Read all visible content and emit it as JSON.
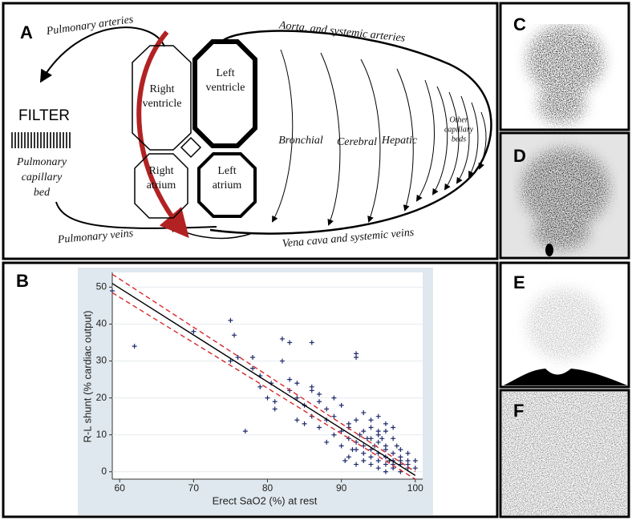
{
  "panels": [
    "A",
    "B",
    "C",
    "D",
    "E",
    "F"
  ],
  "diagram": {
    "pulmonary_arteries": "Pulmonary arteries",
    "filter": "FILTER",
    "capillary_bed": [
      "Pulmonary",
      "capillary",
      "bed"
    ],
    "right_ventricle": [
      "Right",
      "ventricle"
    ],
    "left_ventricle": [
      "Left",
      "ventricle"
    ],
    "right_atrium": [
      "Right",
      "atrium"
    ],
    "left_atrium": [
      "Left",
      "atrium"
    ],
    "aorta": "Aorta, and systemic arteries",
    "bronchial": "Bronchial",
    "cerebral": "Cerebral",
    "hepatic": "Hepatic",
    "other_beds": [
      "Other",
      "capillary",
      "beds"
    ],
    "pulmonary_veins": "Pulmonary veins",
    "vena_cava": "Vena cava and systemic veins"
  },
  "chart_data": {
    "type": "scatter",
    "xlabel": "Erect SaO2 (%) at rest",
    "ylabel": "R-L shunt (% cardiac output)",
    "xlim": [
      59,
      101
    ],
    "ylim": [
      -2,
      54
    ],
    "xticks": [
      60,
      70,
      80,
      90,
      100
    ],
    "yticks": [
      0,
      10,
      20,
      30,
      40,
      50
    ],
    "series": [
      {
        "type": "scatter",
        "color": "#1f2a6b",
        "x": [
          59,
          62,
          70,
          75,
          75.5,
          75,
          76,
          77,
          78,
          78,
          79,
          79,
          80,
          80.5,
          81,
          81,
          82,
          82,
          83,
          83,
          83,
          84,
          84,
          84,
          85,
          85,
          86,
          86,
          86,
          86,
          87,
          87,
          87,
          88,
          88,
          88,
          89,
          89,
          89,
          90,
          90,
          90,
          91,
          91,
          91,
          91,
          92,
          92,
          92,
          92,
          92,
          92,
          93,
          93,
          93,
          93,
          93,
          94,
          94,
          94,
          94,
          94,
          94,
          95,
          95,
          95,
          95,
          95,
          95,
          96,
          96,
          96,
          96,
          96,
          96,
          97,
          97,
          97,
          97,
          97,
          98,
          98,
          98,
          98,
          98,
          99,
          99,
          99,
          99,
          100,
          100,
          94.5,
          95.5,
          96.5,
          97.5,
          93.5,
          92.5,
          91.5,
          90.5,
          95,
          96,
          97
        ],
        "values": [
          49,
          34,
          38,
          41,
          37,
          30,
          31,
          11,
          31,
          28,
          23,
          26,
          20,
          24,
          19,
          17,
          30,
          36,
          35,
          25,
          22,
          20,
          24,
          14,
          18,
          13,
          35,
          23,
          22,
          15,
          21,
          12,
          19,
          14,
          8,
          17,
          15,
          10,
          20,
          18,
          11,
          7,
          9,
          4,
          13,
          12,
          32,
          31,
          8,
          6,
          14,
          2,
          11,
          7,
          5,
          3,
          16,
          9,
          6,
          4,
          2,
          14,
          12,
          8,
          5,
          3,
          1,
          15,
          10,
          7,
          4,
          2,
          0,
          11,
          6,
          5,
          3,
          1,
          9,
          2,
          4,
          2,
          0,
          6,
          3,
          3,
          1,
          2,
          5,
          3,
          1,
          7,
          9,
          3,
          7,
          9,
          10,
          6,
          3,
          11,
          13,
          12
        ]
      },
      {
        "type": "line",
        "color": "#000000",
        "x": [
          59,
          100
        ],
        "values": [
          51,
          -1
        ]
      },
      {
        "type": "line",
        "color": "#d62728",
        "dash": true,
        "x": [
          59,
          100
        ],
        "values": [
          53.5,
          0
        ]
      },
      {
        "type": "line",
        "color": "#d62728",
        "dash": true,
        "x": [
          59,
          100
        ],
        "values": [
          48.5,
          -2
        ]
      }
    ]
  }
}
